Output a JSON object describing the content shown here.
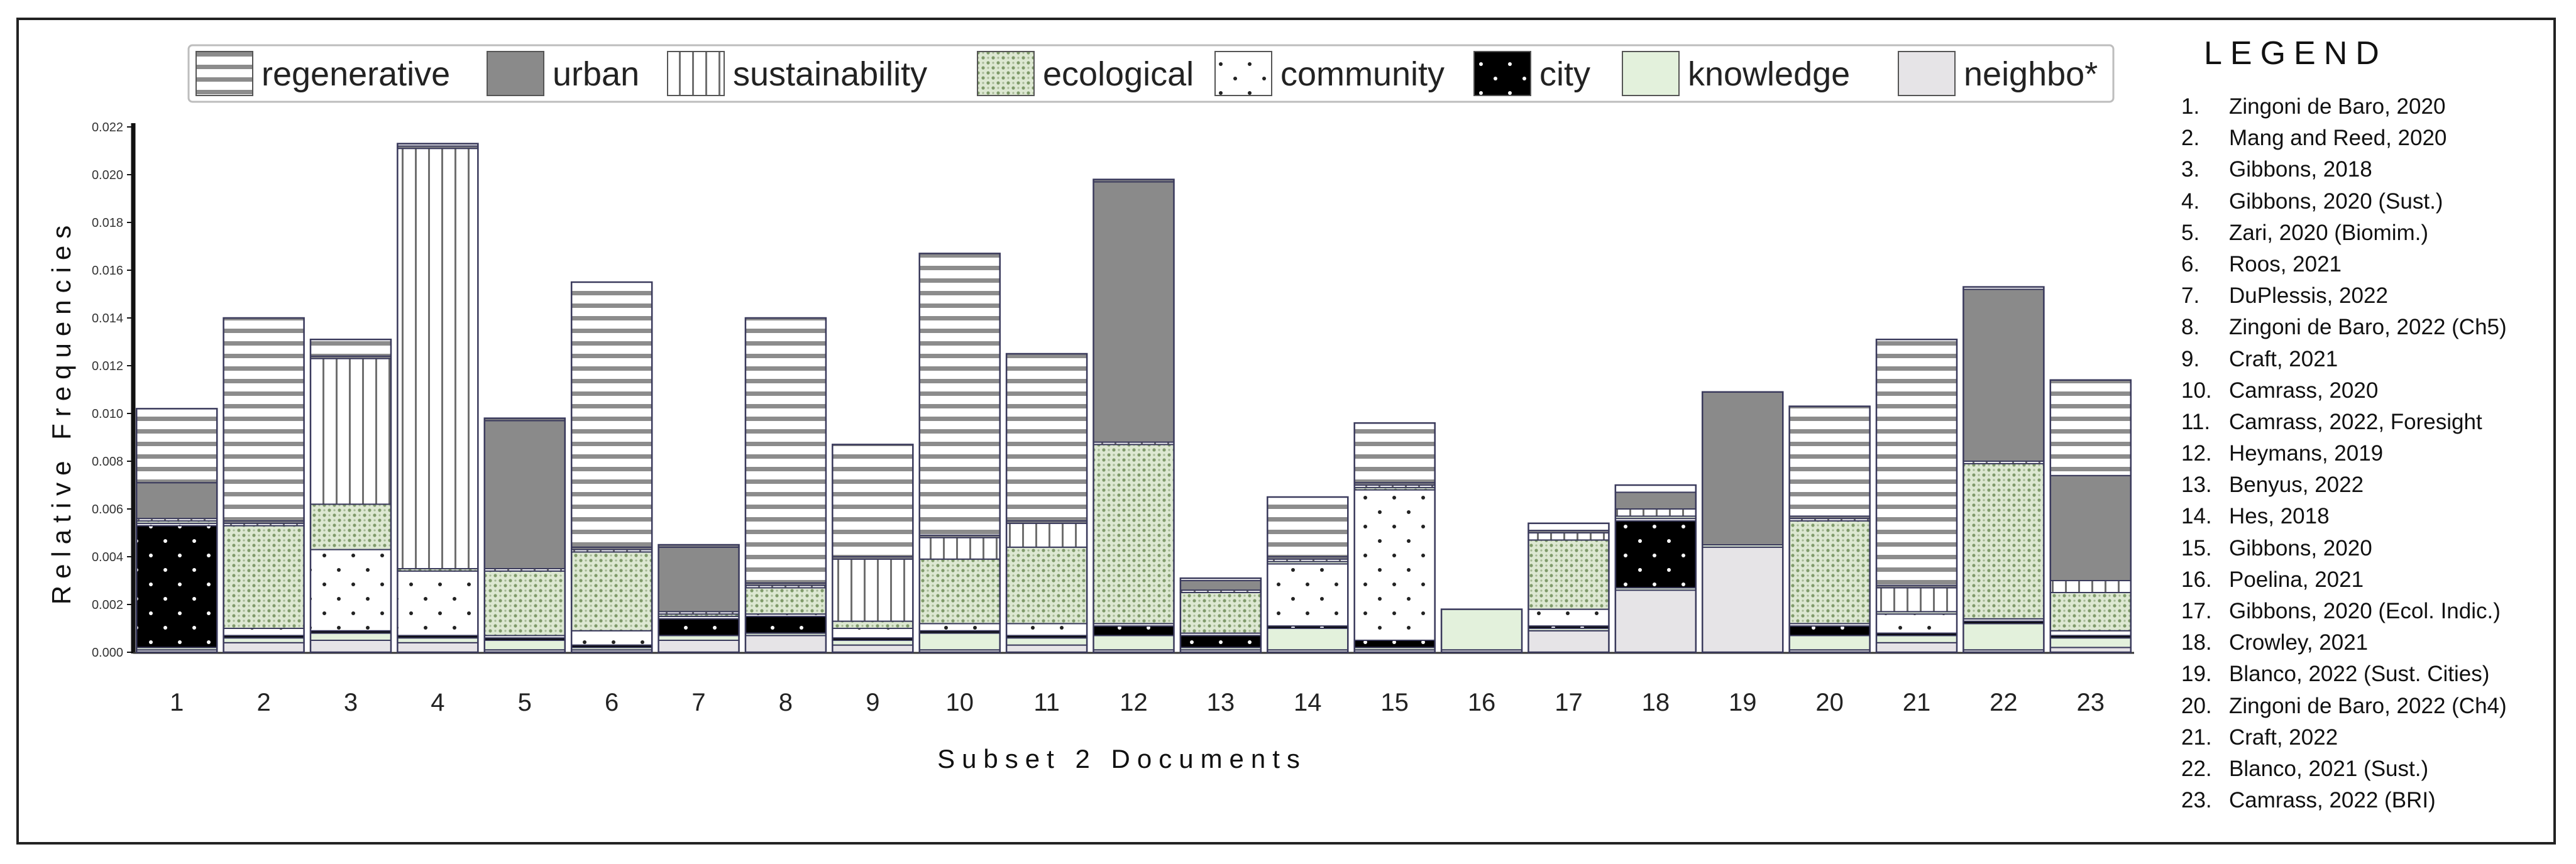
{
  "chart_data": {
    "type": "bar",
    "stacked": true,
    "ylabel": "Relative Frequencies",
    "xlabel": "Subset 2 Documents",
    "ylim": [
      0,
      0.022
    ],
    "yticks": [
      "0.000",
      "0.002",
      "0.004",
      "0.006",
      "0.008",
      "0.010",
      "0.012",
      "0.014",
      "0.016",
      "0.018",
      "0.020",
      "0.022"
    ],
    "categories": [
      "1",
      "2",
      "3",
      "4",
      "5",
      "6",
      "7",
      "8",
      "9",
      "10",
      "11",
      "12",
      "13",
      "14",
      "15",
      "16",
      "17",
      "18",
      "19",
      "20",
      "21",
      "22",
      "23"
    ],
    "series": [
      {
        "name": "neighbo*",
        "key": "neighbo",
        "values": [
          0.0001,
          0.0004,
          0.0005,
          0.0004,
          0.0001,
          0.0001,
          0.0005,
          0.0007,
          0.0003,
          0.0001,
          0.0003,
          0.0001,
          0.0001,
          0.0001,
          0.0001,
          0.0001,
          0.0009,
          0.0026,
          0.0044,
          0.0001,
          0.0004,
          0.0001,
          0.0002
        ]
      },
      {
        "name": "knowledge",
        "key": "knowledge",
        "values": [
          0.0001,
          0.0002,
          0.0003,
          0.0002,
          0.0004,
          0.0001,
          0.0002,
          0.0001,
          0.0002,
          0.0007,
          0.0003,
          0.0006,
          0.0001,
          0.0009,
          0.0001,
          0.0017,
          0.0001,
          0.0001,
          0.0001,
          0.0006,
          0.0003,
          0.0011,
          0.0004
        ]
      },
      {
        "name": "city",
        "key": "city",
        "values": [
          0.0051,
          0.0001,
          0.0001,
          0.0001,
          0.0001,
          0.0001,
          0.0007,
          0.0007,
          0.0001,
          0.0001,
          0.0001,
          0.0004,
          0.0005,
          0.0001,
          0.0003,
          0.0,
          0.0001,
          0.0028,
          0.0,
          0.0004,
          0.0001,
          0.0001,
          0.0001
        ]
      },
      {
        "name": "community",
        "key": "community",
        "values": [
          0.0001,
          0.0003,
          0.0034,
          0.0027,
          0.0001,
          0.0006,
          0.0001,
          0.0001,
          0.0004,
          0.0003,
          0.0005,
          0.0001,
          0.0001,
          0.0026,
          0.0063,
          0.0,
          0.0007,
          0.0001,
          0.0,
          0.0001,
          0.0008,
          0.0001,
          0.0002
        ]
      },
      {
        "name": "ecological",
        "key": "ecological",
        "values": [
          0.0001,
          0.0043,
          0.0019,
          0.0001,
          0.0027,
          0.0033,
          0.0001,
          0.0011,
          0.0003,
          0.0027,
          0.0032,
          0.0075,
          0.0017,
          0.0001,
          0.0001,
          0.0,
          0.0029,
          0.0001,
          0.0,
          0.0043,
          0.0001,
          0.0065,
          0.0016
        ]
      },
      {
        "name": "sustainability",
        "key": "sustainability",
        "values": [
          0.0001,
          0.0001,
          0.0061,
          0.0176,
          0.0001,
          0.0001,
          0.0001,
          0.0001,
          0.0026,
          0.0009,
          0.001,
          0.0001,
          0.0001,
          0.0001,
          0.0001,
          0.0,
          0.0003,
          0.0003,
          0.0,
          0.0001,
          0.001,
          0.0001,
          0.0005
        ]
      },
      {
        "name": "urban",
        "key": "urban",
        "values": [
          0.0015,
          0.0001,
          0.0001,
          0.0001,
          0.0062,
          0.0001,
          0.0027,
          0.0001,
          0.0001,
          0.0001,
          0.0001,
          0.0109,
          0.0004,
          0.0001,
          0.0001,
          0.0,
          0.0001,
          0.0007,
          0.0064,
          0.0001,
          0.0001,
          0.0072,
          0.0044
        ]
      },
      {
        "name": "regenerative",
        "key": "regenerative",
        "values": [
          0.0031,
          0.0085,
          0.0007,
          0.0001,
          0.0001,
          0.0111,
          0.0001,
          0.0111,
          0.0047,
          0.0118,
          0.007,
          0.0001,
          0.0001,
          0.0025,
          0.0025,
          0.0,
          0.0003,
          0.0003,
          0.0,
          0.0046,
          0.0103,
          0.0001,
          0.004
        ]
      }
    ],
    "legend": {
      "placement": "top",
      "entries": [
        {
          "key": "regenerative",
          "label": "regenerative"
        },
        {
          "key": "urban",
          "label": "urban"
        },
        {
          "key": "sustainability",
          "label": "sustainability"
        },
        {
          "key": "ecological",
          "label": "ecological"
        },
        {
          "key": "community",
          "label": "community"
        },
        {
          "key": "city",
          "label": "city"
        },
        {
          "key": "knowledge",
          "label": "knowledge"
        },
        {
          "key": "neighbo",
          "label": "neighbo*"
        }
      ]
    },
    "colors": {
      "urban": "#8a8a8a",
      "city": "#000000",
      "knowledge": "#e3f1dc",
      "neighbo": "#e6e4e7",
      "ecological_bg": "#dde8d2",
      "ecological_dot": "#7f9a6a",
      "stripe": "#8c8c8c",
      "bar_outline": "#3a3a5c"
    }
  },
  "reference_legend": {
    "title": "LEGEND",
    "items": [
      {
        "num": "1.",
        "text": "Zingoni de Baro, 2020"
      },
      {
        "num": "2.",
        "text": "Mang and Reed, 2020"
      },
      {
        "num": "3.",
        "text": "Gibbons, 2018"
      },
      {
        "num": "4.",
        "text": "Gibbons, 2020 (Sust.)"
      },
      {
        "num": "5.",
        "text": "Zari, 2020 (Biomim.)"
      },
      {
        "num": "6.",
        "text": "Roos, 2021"
      },
      {
        "num": "7.",
        "text": "DuPlessis, 2022"
      },
      {
        "num": "8.",
        "text": "Zingoni de Baro, 2022  (Ch5)"
      },
      {
        "num": "9.",
        "text": "Craft, 2021"
      },
      {
        "num": "10.",
        "text": "Camrass, 2020"
      },
      {
        "num": "11.",
        "text": "Camrass, 2022, Foresight"
      },
      {
        "num": "12.",
        "text": "Heymans, 2019"
      },
      {
        "num": "13.",
        "text": "Benyus, 2022"
      },
      {
        "num": "14.",
        "text": "Hes, 2018"
      },
      {
        "num": "15.",
        "text": "Gibbons, 2020"
      },
      {
        "num": "16.",
        "text": "Poelina, 2021"
      },
      {
        "num": "17.",
        "text": "Gibbons, 2020 (Ecol. Indic.)"
      },
      {
        "num": "18.",
        "text": "Crowley, 2021"
      },
      {
        "num": "19.",
        "text": "Blanco, 2022 (Sust. Cities)"
      },
      {
        "num": "20.",
        "text": "Zingoni de Baro, 2022  (Ch4)"
      },
      {
        "num": "21.",
        "text": "Craft, 2022"
      },
      {
        "num": "22.",
        "text": "Blanco, 2021 (Sust.)"
      },
      {
        "num": "23.",
        "text": "Camrass, 2022 (BRI)"
      }
    ]
  }
}
